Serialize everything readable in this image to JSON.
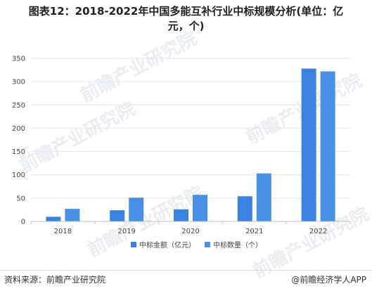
{
  "title_line1": "图表12：2018-2022年中国多能互补行业中标规模分析(单位：亿",
  "title_line2": "元，个)",
  "watermark_text": "前瞻产业研究院",
  "footer": {
    "source": "资料来源：前瞻产业研究院",
    "brand": "@前瞻经济学人APP"
  },
  "colors": {
    "series1": "#3b82e0",
    "series2": "#4a8fe6",
    "grid": "#e6e6e6",
    "axis": "#bfbfbf"
  },
  "chart_data": {
    "type": "bar",
    "title": "图表12：2018-2022年中国多能互补行业中标规模分析(单位：亿元，个)",
    "categories": [
      "2018",
      "2019",
      "2020",
      "2021",
      "2022"
    ],
    "series": [
      {
        "name": "中标金额（亿元）",
        "values": [
          10,
          24,
          26,
          54,
          328
        ]
      },
      {
        "name": "中标数量（个）",
        "values": [
          27,
          51,
          57,
          103,
          322
        ]
      }
    ],
    "ylim": [
      0,
      350
    ],
    "yticks": [
      "0",
      "50",
      "100",
      "150",
      "200",
      "250",
      "300",
      "350"
    ],
    "grid": true,
    "legend_position": "bottom"
  }
}
